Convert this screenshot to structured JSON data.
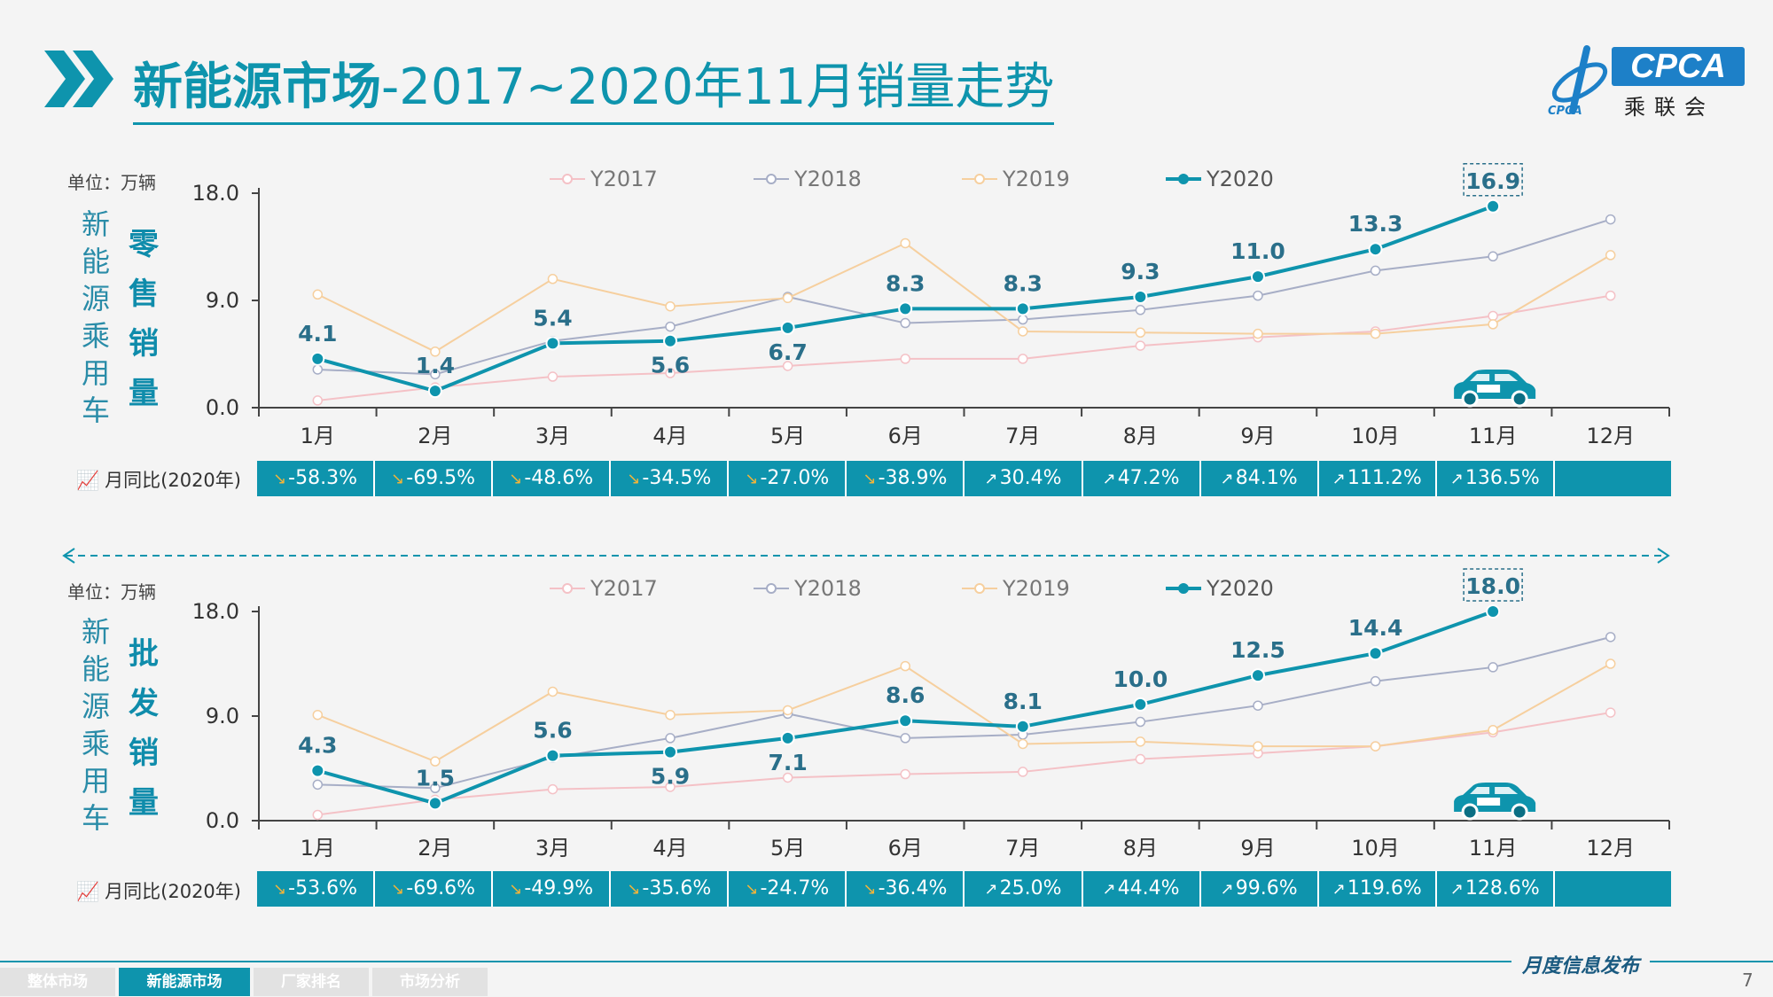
{
  "header": {
    "title_main": "新能源市场",
    "title_sub": "-2017~2020年11月销量走势",
    "logo_text": "CPCA",
    "logo_cn": "乘联会",
    "logo_small": "CPCA"
  },
  "colors": {
    "accent": "#0e94ad",
    "y2017": "#f4c1c6",
    "y2018": "#a7aec6",
    "y2019": "#f6cf9e",
    "y2020": "#0e94ad"
  },
  "months": [
    "1月",
    "2月",
    "3月",
    "4月",
    "5月",
    "6月",
    "7月",
    "8月",
    "9月",
    "10月",
    "11月",
    "12月"
  ],
  "chart_data": [
    {
      "type": "line",
      "unit": "单位：万辆",
      "left_label": [
        "新",
        "能",
        "源",
        "乘",
        "用",
        "车"
      ],
      "side_label": [
        "零",
        "售",
        "销",
        "量"
      ],
      "categories": [
        "1月",
        "2月",
        "3月",
        "4月",
        "5月",
        "6月",
        "7月",
        "8月",
        "9月",
        "10月",
        "11月",
        "12月"
      ],
      "yticks": [
        "18.0",
        "9.0",
        "0.0"
      ],
      "ylim": [
        0,
        18
      ],
      "legend": [
        "Y2017",
        "Y2018",
        "Y2019",
        "Y2020"
      ],
      "series": [
        {
          "name": "Y2017",
          "values": [
            0.6,
            1.7,
            2.6,
            2.9,
            3.5,
            4.1,
            4.1,
            5.2,
            5.9,
            6.4,
            7.7,
            9.4
          ]
        },
        {
          "name": "Y2018",
          "values": [
            3.2,
            2.8,
            5.6,
            6.8,
            9.3,
            7.1,
            7.4,
            8.2,
            9.4,
            11.5,
            12.7,
            15.8
          ]
        },
        {
          "name": "Y2019",
          "values": [
            9.5,
            4.7,
            10.8,
            8.5,
            9.2,
            13.8,
            6.4,
            6.3,
            6.2,
            6.2,
            7.0,
            12.8
          ]
        },
        {
          "name": "Y2020",
          "values": [
            4.1,
            1.4,
            5.4,
            5.6,
            6.7,
            8.3,
            8.3,
            9.3,
            11.0,
            13.3,
            16.9,
            null
          ]
        }
      ],
      "data_labels": [
        "4.1",
        "1.4",
        "5.4",
        "5.6",
        "6.7",
        "8.3",
        "8.3",
        "9.3",
        "11.0",
        "13.3",
        "16.9"
      ],
      "yoy_label": "月同比(2020年)",
      "yoy": [
        {
          "text": "-58.3%",
          "dir": "down"
        },
        {
          "text": "-69.5%",
          "dir": "down"
        },
        {
          "text": "-48.6%",
          "dir": "down"
        },
        {
          "text": "-34.5%",
          "dir": "down"
        },
        {
          "text": "-27.0%",
          "dir": "down"
        },
        {
          "text": "-38.9%",
          "dir": "down"
        },
        {
          "text": "30.4%",
          "dir": "up"
        },
        {
          "text": "47.2%",
          "dir": "up"
        },
        {
          "text": "84.1%",
          "dir": "up"
        },
        {
          "text": "111.2%",
          "dir": "up"
        },
        {
          "text": "136.5%",
          "dir": "up"
        },
        {
          "text": "",
          "dir": ""
        }
      ]
    },
    {
      "type": "line",
      "unit": "单位：万辆",
      "left_label": [
        "新",
        "能",
        "源",
        "乘",
        "用",
        "车"
      ],
      "side_label": [
        "批",
        "发",
        "销",
        "量"
      ],
      "categories": [
        "1月",
        "2月",
        "3月",
        "4月",
        "5月",
        "6月",
        "7月",
        "8月",
        "9月",
        "10月",
        "11月",
        "12月"
      ],
      "yticks": [
        "18.0",
        "9.0",
        "0.0"
      ],
      "ylim": [
        0,
        18
      ],
      "legend": [
        "Y2017",
        "Y2018",
        "Y2019",
        "Y2020"
      ],
      "series": [
        {
          "name": "Y2017",
          "values": [
            0.5,
            1.8,
            2.7,
            2.9,
            3.7,
            4.0,
            4.2,
            5.3,
            5.8,
            6.4,
            7.6,
            9.3
          ]
        },
        {
          "name": "Y2018",
          "values": [
            3.1,
            2.8,
            5.4,
            7.1,
            9.2,
            7.1,
            7.4,
            8.5,
            9.9,
            12.0,
            13.2,
            15.8
          ]
        },
        {
          "name": "Y2019",
          "values": [
            9.1,
            5.1,
            11.1,
            9.1,
            9.5,
            13.3,
            6.6,
            6.8,
            6.4,
            6.4,
            7.8,
            13.5
          ]
        },
        {
          "name": "Y2020",
          "values": [
            4.3,
            1.5,
            5.6,
            5.9,
            7.1,
            8.6,
            8.1,
            10.0,
            12.5,
            14.4,
            18.0,
            null
          ]
        }
      ],
      "data_labels": [
        "4.3",
        "1.5",
        "5.6",
        "5.9",
        "7.1",
        "8.6",
        "8.1",
        "10.0",
        "12.5",
        "14.4",
        "18.0"
      ],
      "yoy_label": "月同比(2020年)",
      "yoy": [
        {
          "text": "-53.6%",
          "dir": "down"
        },
        {
          "text": "-69.6%",
          "dir": "down"
        },
        {
          "text": "-49.9%",
          "dir": "down"
        },
        {
          "text": "-35.6%",
          "dir": "down"
        },
        {
          "text": "-24.7%",
          "dir": "down"
        },
        {
          "text": "-36.4%",
          "dir": "down"
        },
        {
          "text": "25.0%",
          "dir": "up"
        },
        {
          "text": "44.4%",
          "dir": "up"
        },
        {
          "text": "99.6%",
          "dir": "up"
        },
        {
          "text": "119.6%",
          "dir": "up"
        },
        {
          "text": "128.6%",
          "dir": "up"
        },
        {
          "text": "",
          "dir": ""
        }
      ]
    }
  ],
  "footer": {
    "tabs": [
      "整体市场",
      "新能源市场",
      "厂家排名",
      "市场分析"
    ],
    "active_tab": 1,
    "tagline": "月度信息发布",
    "page_number": "7"
  }
}
